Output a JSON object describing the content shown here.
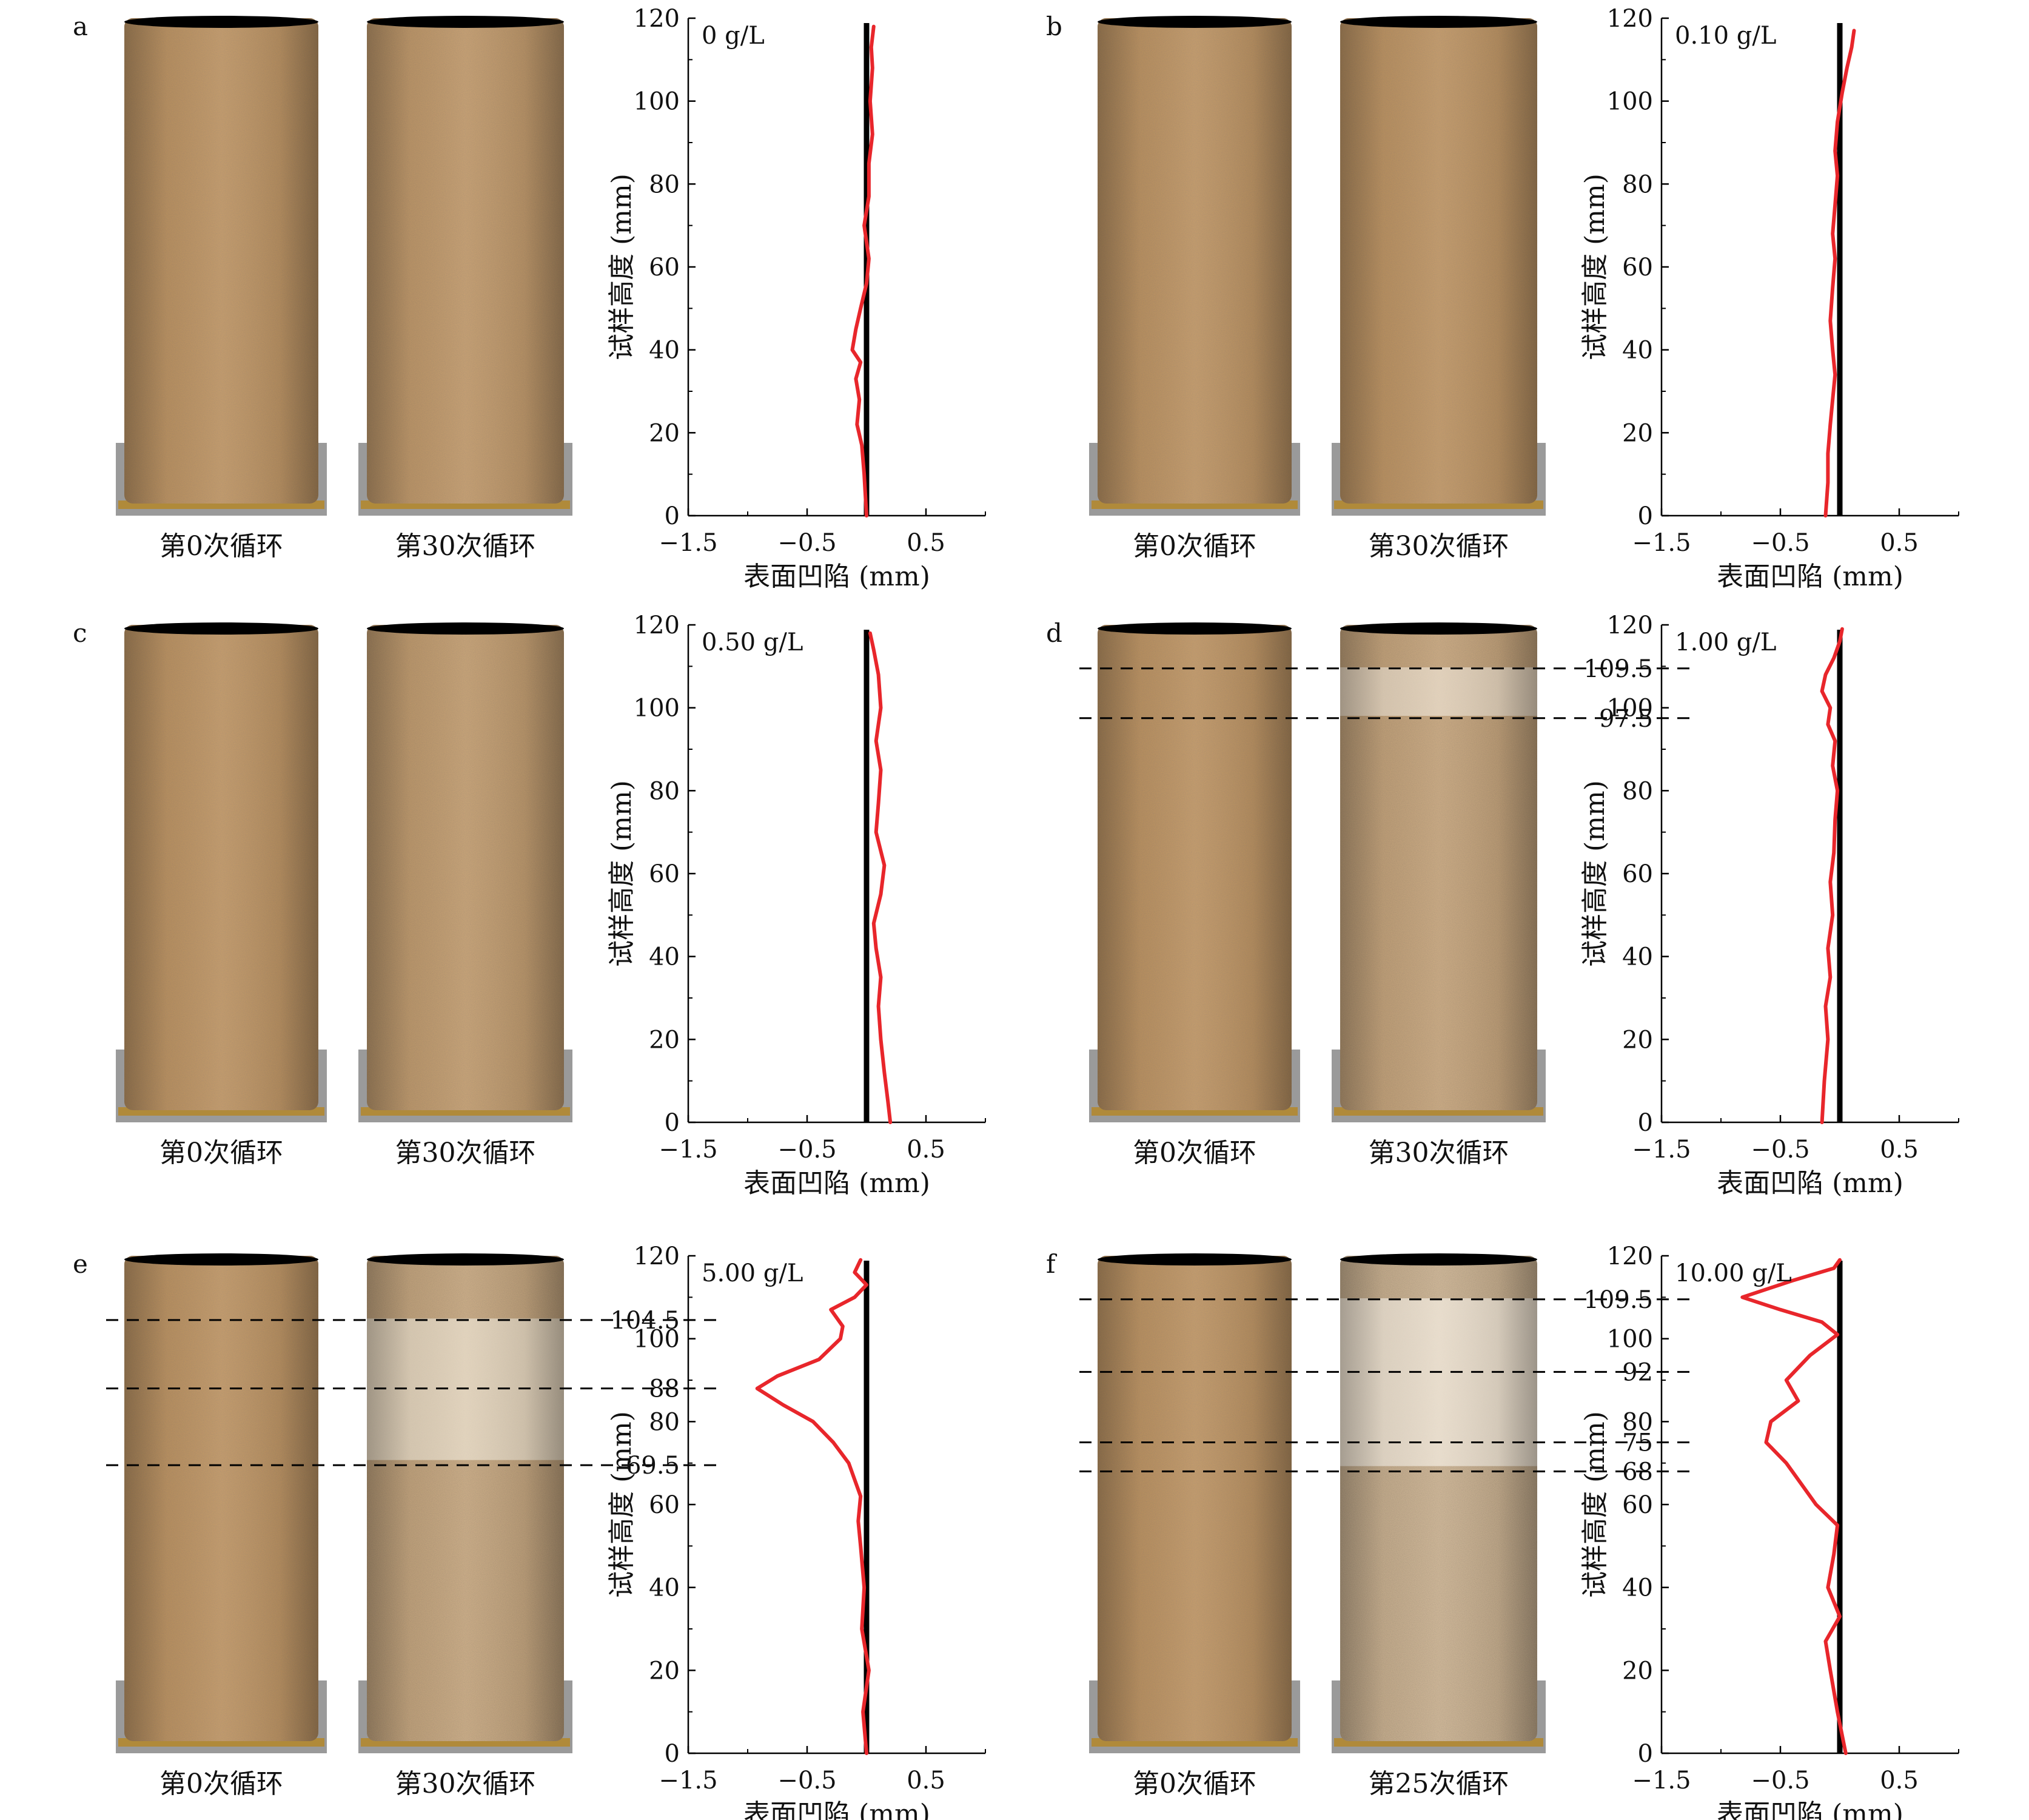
{
  "figure": {
    "caption_before": "第0次循环",
    "ylabel": "试样高度 (mm)",
    "xlabel": "表面凹陷 (mm)"
  },
  "colors": {
    "profile_line": "#e8262b",
    "reference_line": "#000000",
    "sample_fresh": "#c89a62",
    "sample_weathered_light": "#d9c7ad"
  },
  "chart_data": [
    {
      "panel": "a",
      "type": "line",
      "annotation": "0 g/L",
      "caption_after": "第30次循环",
      "weathering": 0.15,
      "salt_band": null,
      "xlim": [
        -1.5,
        1.0
      ],
      "ylim": [
        0,
        120
      ],
      "xticks": [
        -1.5,
        -0.5,
        0.5
      ],
      "yticks": [
        0,
        20,
        40,
        60,
        80,
        100,
        120
      ],
      "xlabel": "表面凹陷 (mm)",
      "ylabel": "试样高度 (mm)",
      "reference_x": 0,
      "extra_ytick_labels": [],
      "dashed_heights": [],
      "series": [
        {
          "points": [
            [
              0,
              0
            ],
            [
              -0.02,
              10
            ],
            [
              -0.04,
              17
            ],
            [
              -0.08,
              22
            ],
            [
              -0.06,
              28
            ],
            [
              -0.09,
              33
            ],
            [
              -0.05,
              37
            ],
            [
              -0.12,
              40
            ],
            [
              -0.09,
              45
            ],
            [
              -0.05,
              50
            ],
            [
              0.0,
              56
            ],
            [
              0.02,
              62
            ],
            [
              -0.02,
              70
            ],
            [
              0.02,
              77
            ],
            [
              0.02,
              85
            ],
            [
              0.05,
              92
            ],
            [
              0.03,
              100
            ],
            [
              0.05,
              108
            ],
            [
              0.04,
              113
            ],
            [
              0.06,
              118
            ]
          ]
        }
      ]
    },
    {
      "panel": "b",
      "type": "line",
      "annotation": "0.10 g/L",
      "caption_after": "第30次循环",
      "weathering": 0.0,
      "salt_band": null,
      "xlim": [
        -1.5,
        1.0
      ],
      "ylim": [
        0,
        120
      ],
      "xticks": [
        -1.5,
        -0.5,
        0.5
      ],
      "yticks": [
        0,
        20,
        40,
        60,
        80,
        100,
        120
      ],
      "xlabel": "表面凹陷 (mm)",
      "ylabel": "试样高度 (mm)",
      "reference_x": 0,
      "extra_ytick_labels": [],
      "dashed_heights": [],
      "series": [
        {
          "points": [
            [
              -0.12,
              0
            ],
            [
              -0.1,
              8
            ],
            [
              -0.1,
              15
            ],
            [
              -0.08,
              22
            ],
            [
              -0.06,
              28
            ],
            [
              -0.04,
              34
            ],
            [
              -0.06,
              40
            ],
            [
              -0.08,
              47
            ],
            [
              -0.06,
              55
            ],
            [
              -0.04,
              62
            ],
            [
              -0.06,
              68
            ],
            [
              -0.04,
              75
            ],
            [
              -0.02,
              82
            ],
            [
              -0.04,
              88
            ],
            [
              -0.02,
              95
            ],
            [
              0.02,
              102
            ],
            [
              0.06,
              108
            ],
            [
              0.1,
              113
            ],
            [
              0.12,
              117
            ]
          ]
        }
      ]
    },
    {
      "panel": "c",
      "type": "line",
      "annotation": "0.50 g/L",
      "caption_after": "第30次循环",
      "weathering": 0.25,
      "salt_band": null,
      "xlim": [
        -1.5,
        1.0
      ],
      "ylim": [
        0,
        120
      ],
      "xticks": [
        -1.5,
        -0.5,
        0.5
      ],
      "yticks": [
        0,
        20,
        40,
        60,
        80,
        100,
        120
      ],
      "xlabel": "表面凹陷 (mm)",
      "ylabel": "试样高度 (mm)",
      "reference_x": 0,
      "extra_ytick_labels": [],
      "dashed_heights": [],
      "series": [
        {
          "points": [
            [
              0.2,
              0
            ],
            [
              0.18,
              5
            ],
            [
              0.15,
              12
            ],
            [
              0.12,
              20
            ],
            [
              0.1,
              28
            ],
            [
              0.12,
              35
            ],
            [
              0.08,
              42
            ],
            [
              0.06,
              48
            ],
            [
              0.12,
              55
            ],
            [
              0.15,
              62
            ],
            [
              0.08,
              70
            ],
            [
              0.1,
              77
            ],
            [
              0.12,
              85
            ],
            [
              0.08,
              92
            ],
            [
              0.12,
              100
            ],
            [
              0.1,
              108
            ],
            [
              0.06,
              114
            ],
            [
              0.03,
              118
            ]
          ]
        }
      ]
    },
    {
      "panel": "d",
      "type": "line",
      "annotation": "1.00 g/L",
      "caption_after": "第30次循环",
      "weathering": 0.55,
      "salt_band": [
        97.5,
        109.5
      ],
      "xlim": [
        -1.5,
        1.0
      ],
      "ylim": [
        0,
        120
      ],
      "xticks": [
        -1.5,
        -0.5,
        0.5
      ],
      "yticks": [
        0,
        20,
        40,
        60,
        80,
        100,
        120
      ],
      "xlabel": "表面凹陷 (mm)",
      "ylabel": "试样高度 (mm)",
      "reference_x": 0,
      "extra_ytick_labels": [
        "109.5",
        "97.5"
      ],
      "dashed_heights": [
        109.5,
        97.5
      ],
      "series": [
        {
          "points": [
            [
              -0.15,
              0
            ],
            [
              -0.13,
              10
            ],
            [
              -0.1,
              20
            ],
            [
              -0.12,
              28
            ],
            [
              -0.08,
              35
            ],
            [
              -0.1,
              42
            ],
            [
              -0.06,
              50
            ],
            [
              -0.08,
              58
            ],
            [
              -0.05,
              65
            ],
            [
              -0.04,
              73
            ],
            [
              -0.02,
              80
            ],
            [
              -0.06,
              86
            ],
            [
              -0.04,
              92
            ],
            [
              -0.1,
              96
            ],
            [
              -0.08,
              100
            ],
            [
              -0.15,
              104
            ],
            [
              -0.12,
              108
            ],
            [
              -0.05,
              112
            ],
            [
              0.0,
              116
            ],
            [
              0.02,
              119
            ]
          ]
        }
      ]
    },
    {
      "panel": "e",
      "type": "line",
      "annotation": "5.00 g/L",
      "caption_after": "第30次循环",
      "weathering": 0.6,
      "salt_band": [
        69.5,
        104.5
      ],
      "xlim": [
        -1.5,
        1.0
      ],
      "ylim": [
        0,
        120
      ],
      "xticks": [
        -1.5,
        -0.5,
        0.5
      ],
      "yticks": [
        0,
        20,
        40,
        60,
        80,
        100,
        120
      ],
      "xlabel": "表面凹陷 (mm)",
      "ylabel": "试样高度 (mm)",
      "reference_x": 0,
      "extra_ytick_labels": [
        "104.5",
        "88",
        "69.5"
      ],
      "dashed_heights": [
        104.5,
        88,
        69.5
      ],
      "series": [
        {
          "points": [
            [
              0.0,
              0
            ],
            [
              -0.03,
              10
            ],
            [
              0.02,
              20
            ],
            [
              -0.04,
              30
            ],
            [
              -0.02,
              40
            ],
            [
              -0.05,
              50
            ],
            [
              -0.07,
              56
            ],
            [
              -0.05,
              62
            ],
            [
              -0.1,
              66
            ],
            [
              -0.15,
              70
            ],
            [
              -0.28,
              75
            ],
            [
              -0.45,
              80
            ],
            [
              -0.7,
              84
            ],
            [
              -0.92,
              88
            ],
            [
              -0.75,
              91
            ],
            [
              -0.4,
              95
            ],
            [
              -0.22,
              100
            ],
            [
              -0.2,
              103
            ],
            [
              -0.3,
              107
            ],
            [
              -0.1,
              110
            ],
            [
              0.0,
              113
            ],
            [
              -0.1,
              116
            ],
            [
              -0.05,
              119
            ]
          ]
        }
      ]
    },
    {
      "panel": "f",
      "type": "line",
      "annotation": "10.00 g/L",
      "caption_after": "第25次循环",
      "weathering": 1.0,
      "salt_band": [
        68,
        109.5
      ],
      "xlim": [
        -1.5,
        1.0
      ],
      "ylim": [
        0,
        120
      ],
      "xticks": [
        -1.5,
        -0.5,
        0.5
      ],
      "yticks": [
        0,
        20,
        40,
        60,
        80,
        100,
        120
      ],
      "xlabel": "表面凹陷 (mm)",
      "ylabel": "试样高度 (mm)",
      "reference_x": 0,
      "extra_ytick_labels": [
        "109.5",
        "92",
        "75",
        "68"
      ],
      "dashed_heights": [
        109.5,
        92,
        75,
        68
      ],
      "series": [
        {
          "points": [
            [
              0.05,
              0
            ],
            [
              -0.02,
              10
            ],
            [
              -0.08,
              20
            ],
            [
              -0.12,
              27
            ],
            [
              0.0,
              33
            ],
            [
              -0.1,
              40
            ],
            [
              -0.05,
              48
            ],
            [
              -0.02,
              55
            ],
            [
              -0.2,
              60
            ],
            [
              -0.35,
              66
            ],
            [
              -0.45,
              70
            ],
            [
              -0.62,
              75
            ],
            [
              -0.58,
              80
            ],
            [
              -0.35,
              85
            ],
            [
              -0.45,
              90
            ],
            [
              -0.25,
              96
            ],
            [
              -0.02,
              101
            ],
            [
              -0.15,
              104
            ],
            [
              -0.5,
              107
            ],
            [
              -0.82,
              110
            ],
            [
              -0.4,
              114
            ],
            [
              -0.05,
              117
            ],
            [
              0.0,
              119
            ]
          ]
        }
      ]
    }
  ]
}
